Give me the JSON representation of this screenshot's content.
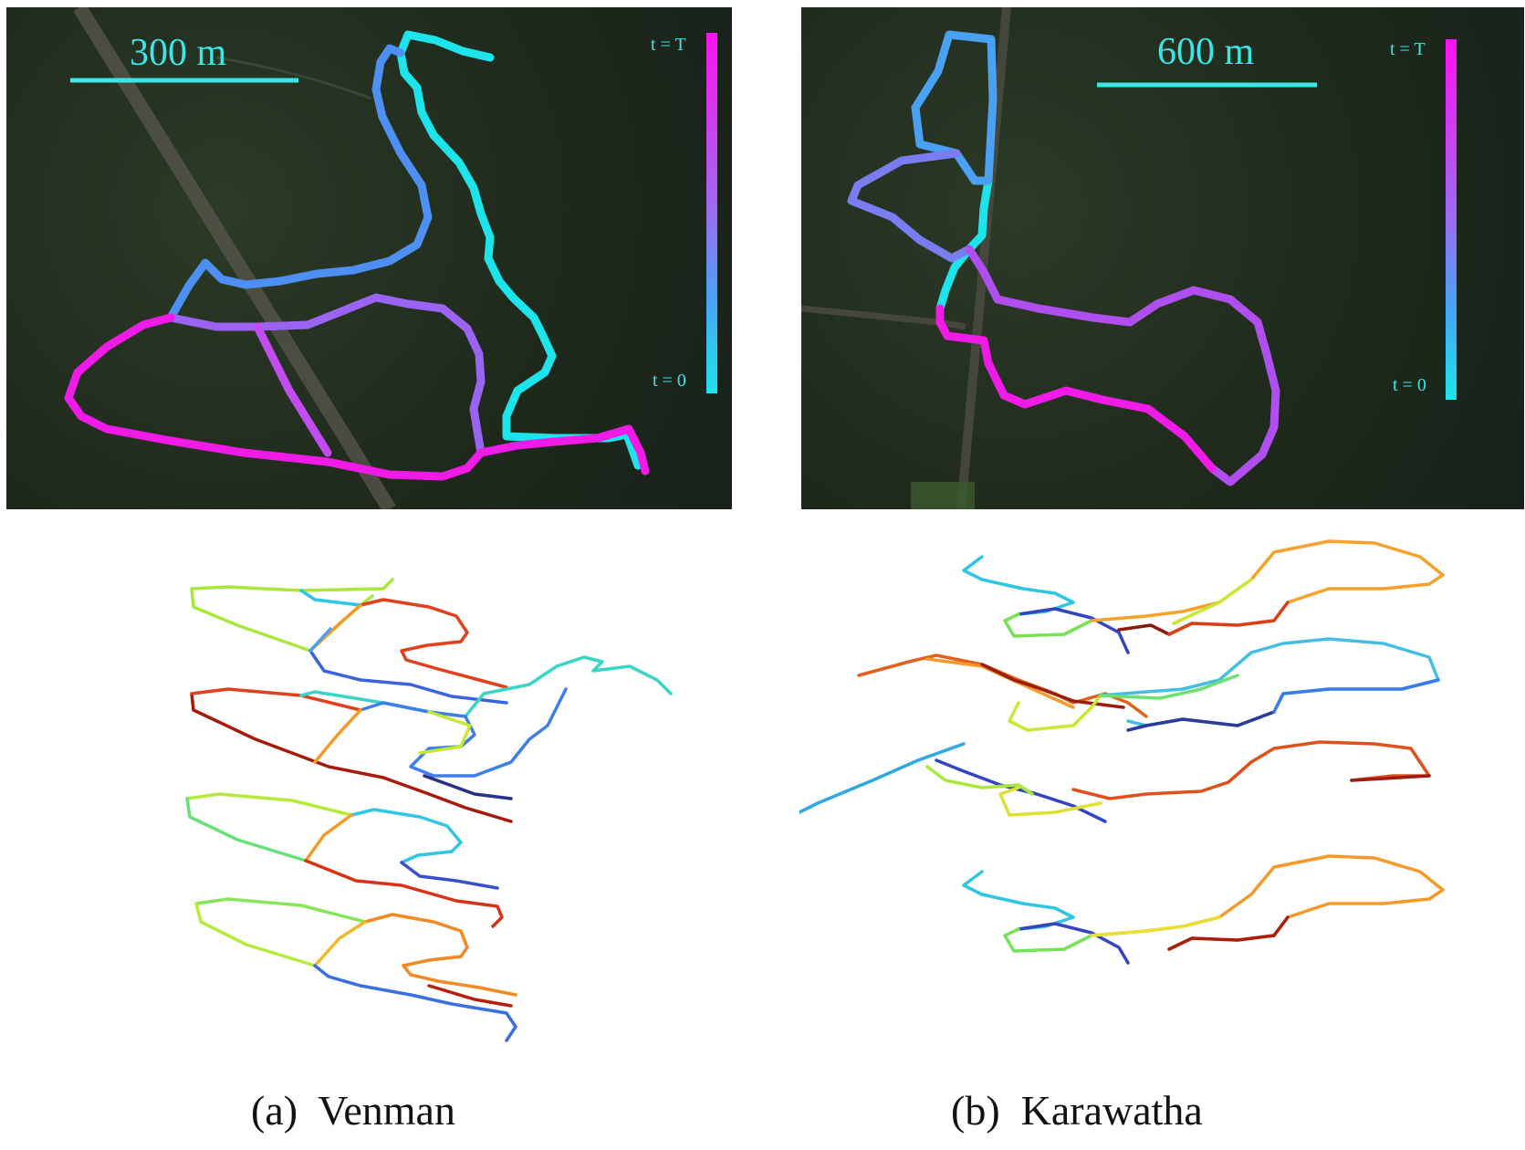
{
  "panels": [
    {
      "id": "a",
      "scale_bar_label": "300 m",
      "colorbar": {
        "top_label": "t = T",
        "bottom_label": "t = 0"
      },
      "caption": "(a)  Venman"
    },
    {
      "id": "b",
      "scale_bar_label": "600 m",
      "colorbar": {
        "top_label": "t = T",
        "bottom_label": "t = 0"
      },
      "caption": "(b)  Karawatha"
    }
  ],
  "colors": {
    "scale_cyan": "#3be6e6",
    "traj_start": "#1de3ea",
    "traj_end": "#ff10f0",
    "satellite_bg": "#1f2a1c"
  }
}
